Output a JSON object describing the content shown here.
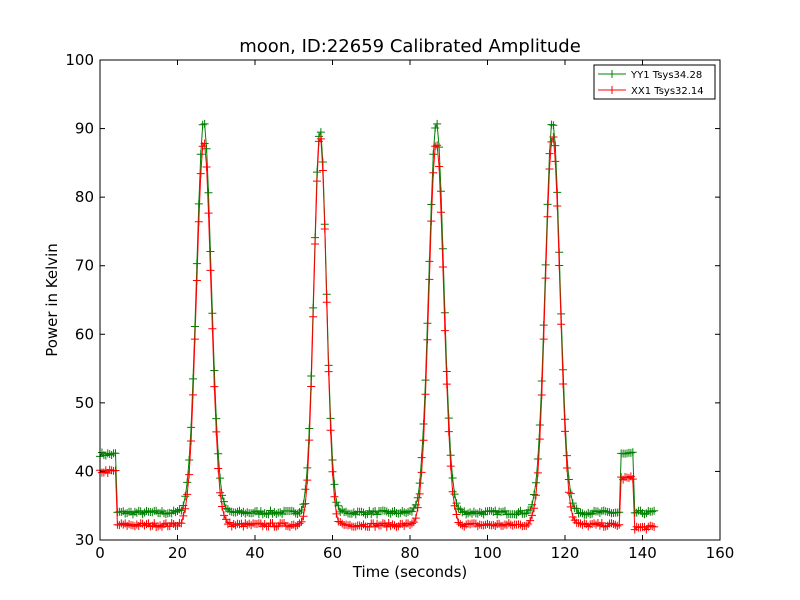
{
  "chart_data": {
    "type": "line",
    "title": "moon, ID:22659 Calibrated Amplitude",
    "xlabel": "Time (seconds)",
    "ylabel": "Power in Kelvin",
    "xlim": [
      0,
      160
    ],
    "ylim": [
      30,
      100
    ],
    "x_ticks": [
      "0",
      "20",
      "40",
      "60",
      "80",
      "100",
      "120",
      "140",
      "160"
    ],
    "y_ticks": [
      "30",
      "40",
      "50",
      "60",
      "70",
      "80",
      "90",
      "100"
    ],
    "grid": false,
    "legend_position": "top-right",
    "sample_step": 0.5,
    "x_range": [
      0,
      143
    ],
    "series": [
      {
        "name": "YY1 Tsys34.28",
        "color": "#008000",
        "marker": "+",
        "baseline_segments": [
          {
            "x": [
              0,
              4.5
            ],
            "y": 42.5
          },
          {
            "x": [
              4.5,
              134.5
            ],
            "y": 34.0
          },
          {
            "x": [
              134.5,
              138
            ],
            "y": 42.5
          },
          {
            "x": [
              138,
              143
            ],
            "y": 34.0
          }
        ],
        "peaks": [
          {
            "x": 26.8,
            "y": 91.0,
            "width": 1.9
          },
          {
            "x": 56.8,
            "y": 90.0,
            "width": 1.6
          },
          {
            "x": 86.8,
            "y": 91.0,
            "width": 1.9
          },
          {
            "x": 116.8,
            "y": 91.0,
            "width": 1.9
          }
        ]
      },
      {
        "name": "XX1 Tsys32.14",
        "color": "#ff0000",
        "marker": "+",
        "baseline_segments": [
          {
            "x": [
              0,
              4.5
            ],
            "y": 40.0
          },
          {
            "x": [
              4.5,
              134.5
            ],
            "y": 32.2
          },
          {
            "x": [
              134.5,
              138
            ],
            "y": 39.0
          },
          {
            "x": [
              138,
              143
            ],
            "y": 31.8
          }
        ],
        "peaks": [
          {
            "x": 26.8,
            "y": 88.0,
            "width": 1.9
          },
          {
            "x": 56.8,
            "y": 89.0,
            "width": 1.6
          },
          {
            "x": 86.8,
            "y": 88.0,
            "width": 1.9
          },
          {
            "x": 116.8,
            "y": 89.0,
            "width": 1.9
          }
        ]
      }
    ]
  }
}
